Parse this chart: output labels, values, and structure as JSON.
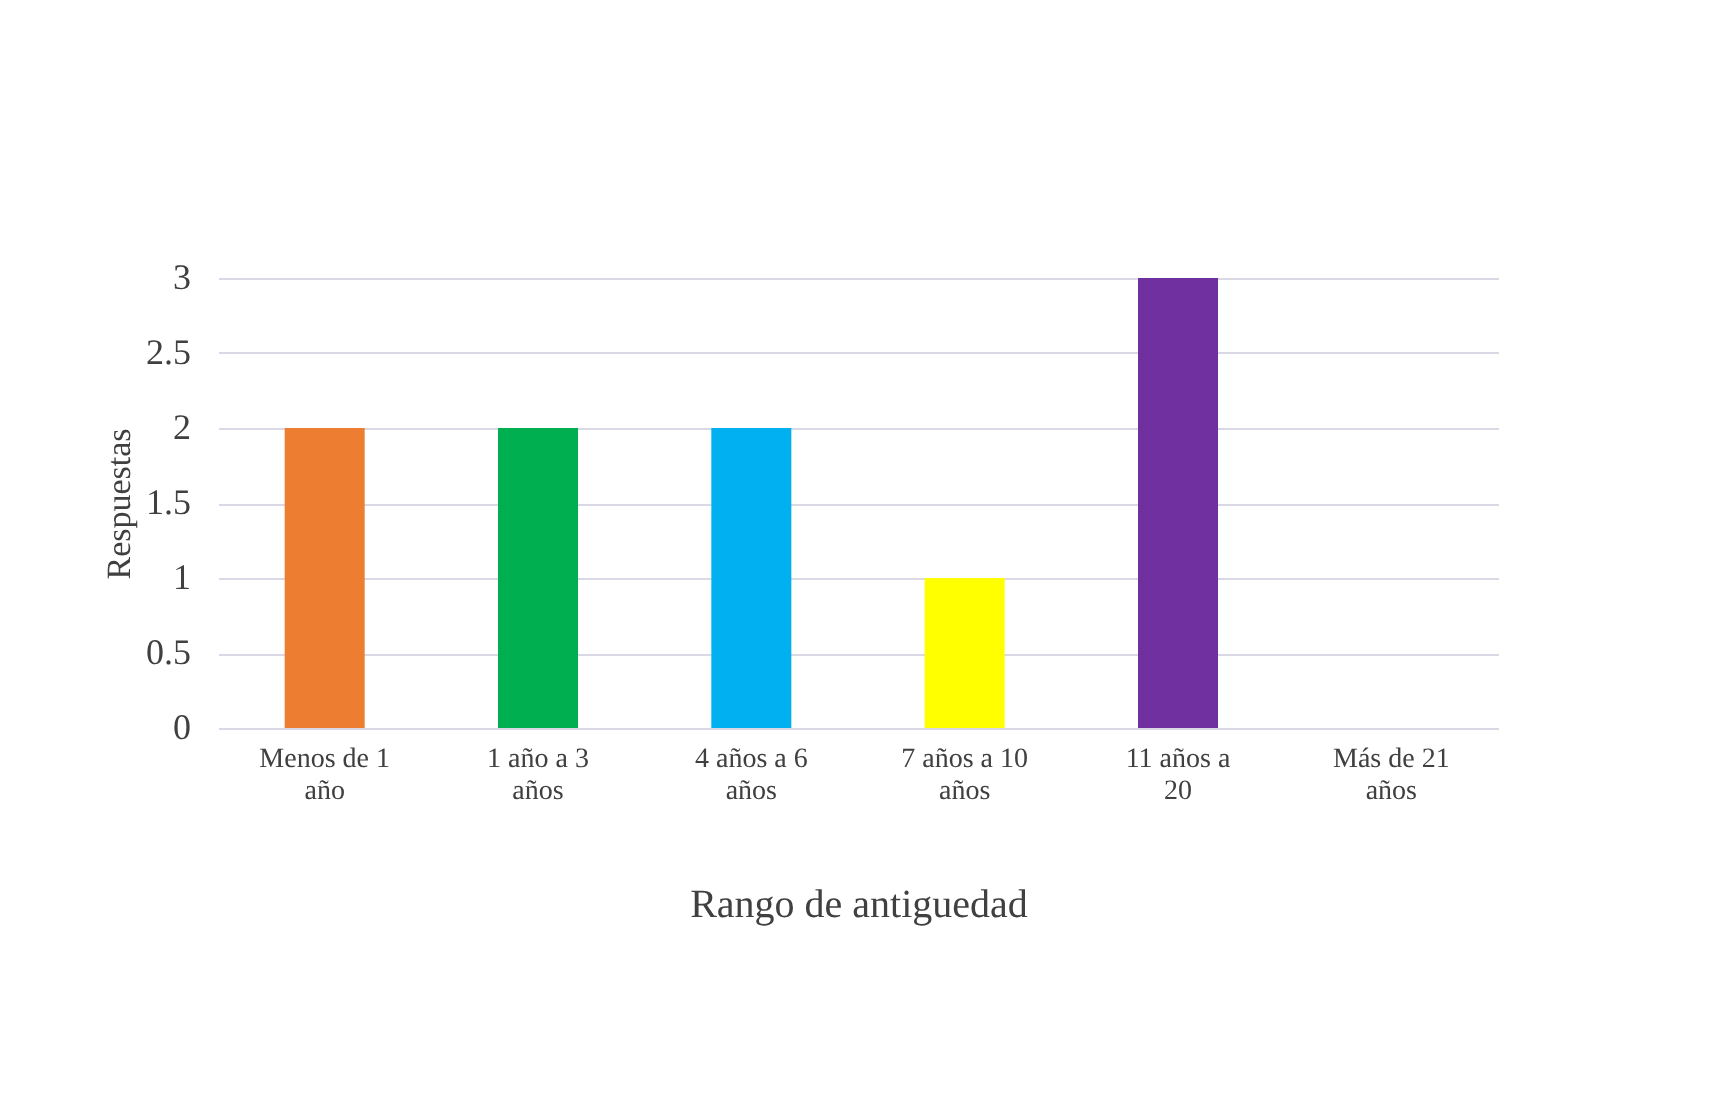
{
  "chart_data": {
    "type": "bar",
    "categories": [
      "Menos de 1 año",
      "1 año a 3 años",
      "4 años a 6 años",
      "7 años a 10 años",
      "11 años a 20",
      "Más de 21 años"
    ],
    "values": [
      2,
      2,
      2,
      1,
      3,
      0
    ],
    "colors": [
      "#ed7d31",
      "#00b050",
      "#00b0f0",
      "#ffff00",
      "#7030a0",
      "#c0279b"
    ],
    "xlabel": "Rango de antiguedad",
    "ylabel": "Respuestas",
    "ylim": [
      0,
      3
    ],
    "yticks": [
      0,
      0.5,
      1,
      1.5,
      2,
      2.5,
      3
    ],
    "grid": "y"
  }
}
